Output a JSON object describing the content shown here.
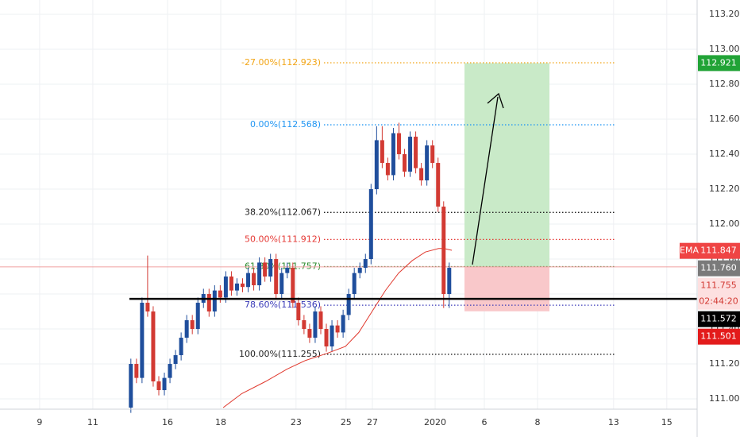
{
  "chart_data": {
    "type": "candlestick",
    "xlim": [
      -1.49,
      24.72
    ],
    "ylim": [
      110.941,
      113.282
    ],
    "grid": true,
    "xticks": [
      {
        "value": 0,
        "label": "9"
      },
      {
        "value": 2,
        "label": "11"
      },
      {
        "value": 4.81,
        "label": "16"
      },
      {
        "value": 6.81,
        "label": "18"
      },
      {
        "value": 9.64,
        "label": "23"
      },
      {
        "value": 11.52,
        "label": "25"
      },
      {
        "value": 12.51,
        "label": "27"
      },
      {
        "value": 14.87,
        "label": "2020"
      },
      {
        "value": 16.72,
        "label": "6"
      },
      {
        "value": 18.72,
        "label": "8"
      },
      {
        "value": 21.58,
        "label": "13"
      },
      {
        "value": 23.58,
        "label": "15"
      }
    ],
    "yticks": [
      {
        "value": 111,
        "label": "111.000"
      },
      {
        "value": 111.2,
        "label": "111.200"
      },
      {
        "value": 111.4,
        "label": "111.400"
      },
      {
        "value": 111.6,
        "label": "111.600"
      },
      {
        "value": 111.8,
        "label": "111.800"
      },
      {
        "value": 112,
        "label": "112.000"
      },
      {
        "value": 112.2,
        "label": "112.200"
      },
      {
        "value": 112.4,
        "label": "112.400"
      },
      {
        "value": 112.6,
        "label": "112.600"
      },
      {
        "value": 112.8,
        "label": "112.800"
      },
      {
        "value": 113,
        "label": "113.000"
      },
      {
        "value": 113.2,
        "label": "113.200"
      }
    ],
    "up_color": "#1f4e9c",
    "down_color": "#d23a33",
    "x": [
      3.43,
      3.64,
      3.85,
      4.06,
      4.27,
      4.48,
      4.69,
      4.9,
      5.11,
      5.32,
      5.53,
      5.74,
      5.95,
      6.16,
      6.37,
      6.58,
      6.79,
      7,
      7.21,
      7.42,
      7.63,
      7.84,
      8.05,
      8.26,
      8.47,
      8.68,
      8.89,
      9.1,
      9.31,
      9.52,
      9.73,
      9.94,
      10.15,
      10.36,
      10.57,
      10.78,
      10.99,
      11.2,
      11.41,
      11.62,
      11.83,
      12.04,
      12.25,
      12.46,
      12.67,
      12.88,
      13.09,
      13.3,
      13.51,
      13.72,
      13.93,
      14.14,
      14.35,
      14.56,
      14.77,
      14.98,
      15.19,
      15.4
    ],
    "open": [
      110.95,
      111.2,
      111.12,
      111.55,
      111.5,
      111.1,
      111.05,
      111.12,
      111.2,
      111.25,
      111.35,
      111.45,
      111.4,
      111.55,
      111.6,
      111.5,
      111.62,
      111.58,
      111.7,
      111.62,
      111.66,
      111.64,
      111.72,
      111.65,
      111.78,
      111.7,
      111.8,
      111.6,
      111.72,
      111.75,
      111.55,
      111.45,
      111.4,
      111.35,
      111.5,
      111.4,
      111.3,
      111.42,
      111.38,
      111.48,
      111.6,
      111.72,
      111.75,
      111.8,
      112.2,
      112.48,
      112.35,
      112.28,
      112.52,
      112.4,
      112.3,
      112.5,
      112.32,
      112.25,
      112.45,
      112.35,
      112.1,
      111.6
    ],
    "high": [
      111.23,
      111.23,
      111.58,
      111.82,
      111.53,
      111.13,
      111.15,
      111.23,
      111.28,
      111.38,
      111.48,
      111.48,
      111.58,
      111.63,
      111.63,
      111.65,
      111.65,
      111.73,
      111.73,
      111.69,
      111.69,
      111.75,
      111.75,
      111.81,
      111.81,
      111.83,
      111.83,
      111.75,
      111.78,
      111.78,
      111.58,
      111.48,
      111.43,
      111.53,
      111.53,
      111.43,
      111.45,
      111.45,
      111.51,
      111.63,
      111.75,
      111.78,
      111.83,
      112.23,
      112.56,
      112.56,
      112.38,
      112.55,
      112.58,
      112.43,
      112.53,
      112.53,
      112.35,
      112.48,
      112.48,
      112.38,
      112.13,
      111.78
    ],
    "low": [
      110.92,
      111.09,
      111.09,
      111.47,
      111.07,
      111.02,
      111.02,
      111.09,
      111.17,
      111.22,
      111.32,
      111.37,
      111.37,
      111.52,
      111.47,
      111.47,
      111.55,
      111.55,
      111.59,
      111.59,
      111.61,
      111.61,
      111.62,
      111.62,
      111.67,
      111.67,
      111.57,
      111.57,
      111.69,
      111.52,
      111.42,
      111.37,
      111.32,
      111.32,
      111.37,
      111.27,
      111.27,
      111.35,
      111.35,
      111.45,
      111.57,
      111.69,
      111.72,
      111.77,
      112.17,
      112.32,
      112.25,
      112.25,
      112.37,
      112.27,
      112.27,
      112.29,
      112.22,
      112.22,
      112.32,
      112.07,
      111.52,
      111.52
    ],
    "close": [
      111.2,
      111.12,
      111.55,
      111.5,
      111.1,
      111.05,
      111.12,
      111.2,
      111.25,
      111.35,
      111.45,
      111.4,
      111.55,
      111.6,
      111.5,
      111.62,
      111.58,
      111.7,
      111.62,
      111.66,
      111.64,
      111.72,
      111.65,
      111.78,
      111.7,
      111.8,
      111.6,
      111.72,
      111.75,
      111.55,
      111.45,
      111.4,
      111.35,
      111.5,
      111.4,
      111.3,
      111.42,
      111.38,
      111.48,
      111.6,
      111.72,
      111.75,
      111.8,
      112.2,
      112.48,
      112.35,
      112.28,
      112.52,
      112.4,
      112.3,
      112.5,
      112.32,
      112.25,
      112.45,
      112.35,
      112.1,
      111.6,
      111.75
    ],
    "ema": {
      "color": "#e0392e",
      "x": [
        6.9,
        7.6,
        8.5,
        9.3,
        10,
        10.8,
        11.5,
        12,
        12.5,
        13,
        13.5,
        14,
        14.5,
        15,
        15.2,
        15.5
      ],
      "values": [
        110.95,
        111.03,
        111.1,
        111.17,
        111.22,
        111.26,
        111.3,
        111.38,
        111.5,
        111.62,
        111.72,
        111.79,
        111.84,
        111.86,
        111.86,
        111.85
      ]
    },
    "fib_levels": [
      {
        "label": "-27.00%(112.923)",
        "value": 112.923,
        "color": "#f2a516"
      },
      {
        "label": "0.00%(112.568)",
        "value": 112.568,
        "color": "#2196f3"
      },
      {
        "label": "38.20%(112.067)",
        "value": 112.067,
        "color": "#222222"
      },
      {
        "label": "50.00%(111.912)",
        "value": 111.912,
        "color": "#e53935"
      },
      {
        "label": "61.80%(111.757)",
        "value": 111.757,
        "color": "#2e8b2e"
      },
      {
        "label": "78.60%(111.536)",
        "value": 111.536,
        "color": "#3a3ab8"
      },
      {
        "label": "100.00%(111.255)",
        "value": 111.255,
        "color": "#222222"
      }
    ],
    "support_line": {
      "value": 111.572,
      "color": "#000000"
    },
    "current_price": {
      "value": 111.755,
      "color": "#f0a0a0"
    },
    "position": {
      "entry": 111.757,
      "target": 112.921,
      "stop": 111.501
    },
    "ema_tag": "EMA",
    "countdown": "02:44:20",
    "price_labels": [
      {
        "label": "112.921",
        "value": 112.921,
        "bg": "#21a336",
        "fg": "#ffffff"
      },
      {
        "label": "111.847",
        "value": 111.847,
        "bg": "#ef4444",
        "fg": "#ffffff"
      },
      {
        "label": "111.760",
        "value": 111.76,
        "bg": "#7a7a7a",
        "fg": "#ffffff"
      },
      {
        "label": "111.755",
        "value": 111.755,
        "bg": "#fde0e0",
        "fg": "#d23a33"
      },
      {
        "label": "111.572",
        "value": 111.572,
        "bg": "#000000",
        "fg": "#ffffff"
      },
      {
        "label": "111.501",
        "value": 111.501,
        "bg": "#e31b1b",
        "fg": "#ffffff"
      }
    ]
  }
}
